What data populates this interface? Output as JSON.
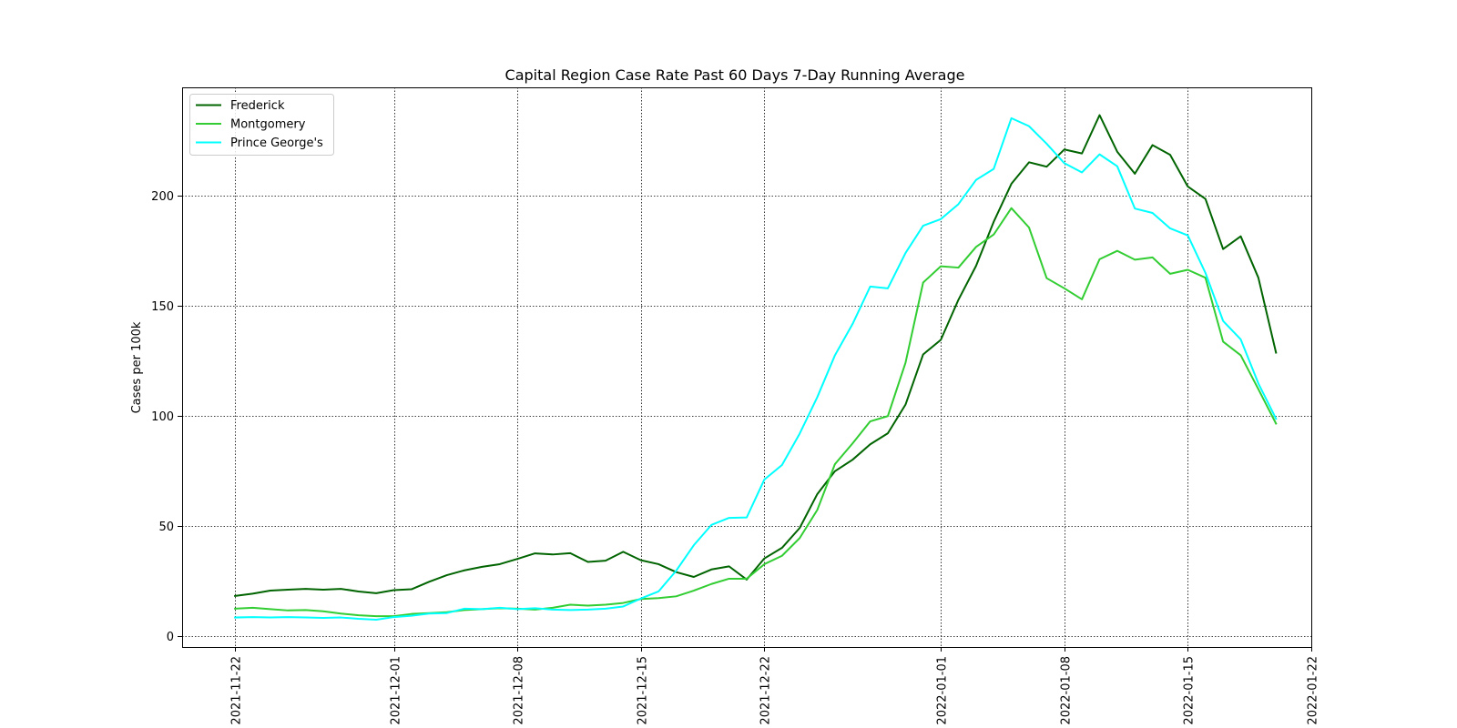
{
  "chart_data": {
    "type": "line",
    "title": "Capital Region Case Rate  Past 60 Days 7-Day Running Average",
    "xlabel": "",
    "ylabel": "Cases per 100k",
    "grid": true,
    "grid_style": "dotted",
    "legend_position": "upper-left",
    "x_range": [
      "2021-11-19",
      "2022-01-22"
    ],
    "ylim": [
      -5,
      249
    ],
    "x_ticks": [
      "2021-11-22",
      "2021-12-01",
      "2021-12-08",
      "2021-12-15",
      "2021-12-22",
      "2022-01-01",
      "2022-01-08",
      "2022-01-15",
      "2022-01-22"
    ],
    "y_ticks": [
      0,
      50,
      100,
      150,
      200
    ],
    "x": [
      "2021-11-22",
      "2021-11-23",
      "2021-11-24",
      "2021-11-25",
      "2021-11-26",
      "2021-11-27",
      "2021-11-28",
      "2021-11-29",
      "2021-11-30",
      "2021-12-01",
      "2021-12-02",
      "2021-12-03",
      "2021-12-04",
      "2021-12-05",
      "2021-12-06",
      "2021-12-07",
      "2021-12-08",
      "2021-12-09",
      "2021-12-10",
      "2021-12-11",
      "2021-12-12",
      "2021-12-13",
      "2021-12-14",
      "2021-12-15",
      "2021-12-16",
      "2021-12-17",
      "2021-12-18",
      "2021-12-19",
      "2021-12-20",
      "2021-12-21",
      "2021-12-22",
      "2021-12-23",
      "2021-12-24",
      "2021-12-25",
      "2021-12-26",
      "2021-12-27",
      "2021-12-28",
      "2021-12-29",
      "2021-12-30",
      "2021-12-31",
      "2022-01-01",
      "2022-01-02",
      "2022-01-03",
      "2022-01-04",
      "2022-01-05",
      "2022-01-06",
      "2022-01-07",
      "2022-01-08",
      "2022-01-09",
      "2022-01-10",
      "2022-01-11",
      "2022-01-12",
      "2022-01-13",
      "2022-01-14",
      "2022-01-15",
      "2022-01-16",
      "2022-01-17",
      "2022-01-18",
      "2022-01-19",
      "2022-01-20"
    ],
    "series": [
      {
        "name": "Frederick",
        "color": "#006400",
        "values": [
          18.2,
          19.2,
          20.6,
          21,
          21.4,
          21,
          21.4,
          20.2,
          19.4,
          20.8,
          21.2,
          24.6,
          27.6,
          29.8,
          31.4,
          32.6,
          35,
          37.5,
          37,
          37.6,
          33.6,
          34.2,
          38.2,
          34.4,
          32.6,
          29,
          26.8,
          30.2,
          31.6,
          25.6,
          35.2,
          40,
          49,
          64.4,
          74.8,
          80,
          87,
          92,
          105,
          127.8,
          134.4,
          152.6,
          168,
          188,
          205.2,
          215,
          213,
          220.8,
          219,
          236.4,
          219.8,
          209.8,
          222.8,
          218.4,
          204,
          198.4,
          175.6,
          181.4,
          162.6,
          128.6
        ]
      },
      {
        "name": "Montgomery",
        "color": "#32cd32",
        "values": [
          12.4,
          12.8,
          12.2,
          11.6,
          11.8,
          11.2,
          10.2,
          9.4,
          9,
          9,
          10,
          10.4,
          10.8,
          11.8,
          12.2,
          12.6,
          12.4,
          12,
          12.8,
          14.2,
          13.8,
          14.2,
          15,
          16.8,
          17.2,
          18,
          20.6,
          23.6,
          26,
          26,
          32.6,
          36.4,
          44.4,
          57.2,
          78,
          87.4,
          97.4,
          99.8,
          124,
          160.4,
          167.8,
          167.2,
          176.6,
          182.2,
          194.2,
          185.4,
          162.4,
          157.8,
          152.8,
          171,
          174.8,
          170.8,
          171.8,
          164.4,
          166.2,
          162.6,
          133.6,
          127.4,
          112,
          96.4
        ]
      },
      {
        "name": "Prince George's",
        "color": "#00ffff",
        "values": [
          8.4,
          8.6,
          8.4,
          8.6,
          8.4,
          8.2,
          8.4,
          7.8,
          7.4,
          8.6,
          9.2,
          10.2,
          10.4,
          12.4,
          12.2,
          12.8,
          12.2,
          12.6,
          12,
          11.8,
          12,
          12.4,
          13.4,
          17,
          20.2,
          29.6,
          41.2,
          50.4,
          53.6,
          53.8,
          71,
          77.6,
          91.8,
          108.4,
          127.4,
          141.6,
          158.6,
          157.8,
          173.8,
          186.2,
          189.2,
          196,
          207,
          212,
          235,
          231.4,
          223.4,
          214.6,
          210.4,
          218.6,
          213.2,
          194,
          192,
          185,
          181.8,
          164.8,
          143,
          134.6,
          114.6,
          98.6
        ]
      }
    ]
  }
}
